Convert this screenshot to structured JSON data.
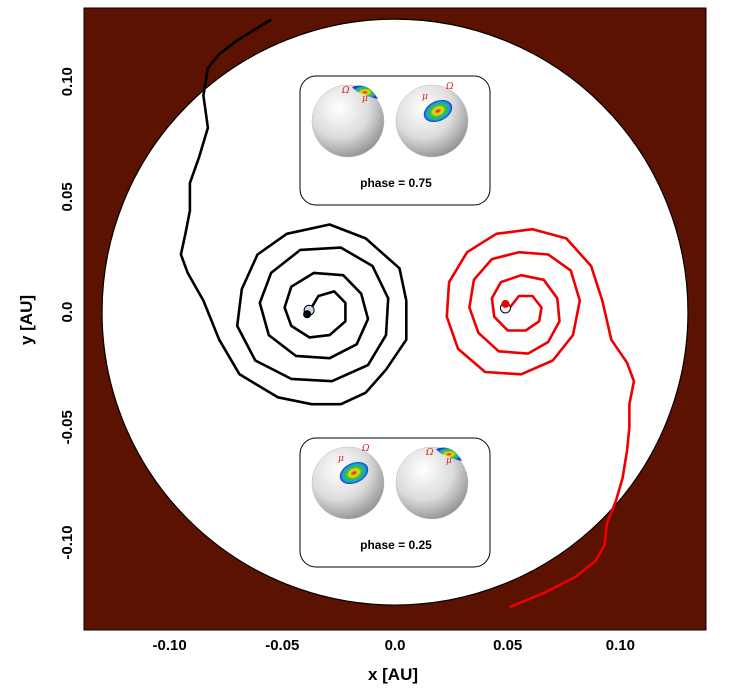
{
  "chart_data": {
    "type": "line",
    "xlabel": "x [AU]",
    "ylabel": "y [AU]",
    "xlim": [
      -0.138,
      0.138
    ],
    "ylim": [
      -0.138,
      0.132
    ],
    "x_ticks": [
      "-0.10",
      "-0.05",
      "0.0",
      "0.05",
      "0.10"
    ],
    "x_tick_values": [
      -0.1,
      -0.05,
      0.0,
      0.05,
      0.1
    ],
    "y_ticks": [
      "0.10",
      "0.05",
      "0.0",
      "-0.05",
      "-0.10"
    ],
    "y_tick_values": [
      0.1,
      0.05,
      0.0,
      -0.05,
      -0.1
    ],
    "background_color": "#5c1200",
    "disk_color": "#ffffff",
    "disk_radius_au": 0.13,
    "series": [
      {
        "color": "#000000",
        "star_position": [
          -0.039,
          -0.0005
        ],
        "points": [
          [
            -0.037,
            0.002
          ],
          [
            -0.034,
            0.007
          ],
          [
            -0.027,
            0.009
          ],
          [
            -0.022,
            0.004
          ],
          [
            -0.022,
            -0.004
          ],
          [
            -0.029,
            -0.01
          ],
          [
            -0.038,
            -0.011
          ],
          [
            -0.046,
            -0.006
          ],
          [
            -0.049,
            0.002
          ],
          [
            -0.046,
            0.011
          ],
          [
            -0.036,
            0.017
          ],
          [
            -0.023,
            0.016
          ],
          [
            -0.015,
            0.008
          ],
          [
            -0.012,
            -0.003
          ],
          [
            -0.017,
            -0.014
          ],
          [
            -0.029,
            -0.02
          ],
          [
            -0.044,
            -0.019
          ],
          [
            -0.056,
            -0.01
          ],
          [
            -0.06,
            0.004
          ],
          [
            -0.055,
            0.017
          ],
          [
            -0.042,
            0.027
          ],
          [
            -0.024,
            0.028
          ],
          [
            -0.01,
            0.02
          ],
          [
            -0.003,
            0.006
          ],
          [
            -0.004,
            -0.01
          ],
          [
            -0.012,
            -0.023
          ],
          [
            -0.028,
            -0.03
          ],
          [
            -0.046,
            -0.029
          ],
          [
            -0.062,
            -0.021
          ],
          [
            -0.07,
            -0.006
          ],
          [
            -0.068,
            0.01
          ],
          [
            -0.061,
            0.025
          ],
          [
            -0.048,
            0.034
          ],
          [
            -0.029,
            0.038
          ],
          [
            -0.013,
            0.032
          ],
          [
            0.002,
            0.019
          ],
          [
            0.005,
            0.005
          ],
          [
            0.005,
            -0.012
          ],
          [
            -0.004,
            -0.025
          ],
          [
            -0.013,
            -0.035
          ],
          [
            -0.024,
            -0.04
          ],
          [
            -0.037,
            -0.04
          ],
          [
            -0.052,
            -0.037
          ],
          [
            -0.069,
            -0.027
          ],
          [
            -0.078,
            -0.012
          ],
          [
            -0.085,
            0.005
          ],
          [
            -0.092,
            0.017
          ],
          [
            -0.095,
            0.025
          ],
          [
            -0.093,
            0.034
          ],
          [
            -0.091,
            0.044
          ],
          [
            -0.091,
            0.056
          ],
          [
            -0.087,
            0.067
          ],
          [
            -0.083,
            0.08
          ],
          [
            -0.085,
            0.094
          ],
          [
            -0.083,
            0.106
          ],
          [
            -0.078,
            0.112
          ],
          [
            -0.07,
            0.118
          ],
          [
            -0.055,
            0.127
          ]
        ]
      },
      {
        "color": "#ee0000",
        "star_position": [
          0.049,
          0.0005
        ],
        "points": [
          [
            0.051,
            0.002
          ],
          [
            0.055,
            0.007
          ],
          [
            0.061,
            0.007
          ],
          [
            0.065,
            0.002
          ],
          [
            0.064,
            -0.004
          ],
          [
            0.058,
            -0.008
          ],
          [
            0.05,
            -0.008
          ],
          [
            0.044,
            -0.002
          ],
          [
            0.043,
            0.006
          ],
          [
            0.047,
            0.013
          ],
          [
            0.056,
            0.016
          ],
          [
            0.066,
            0.014
          ],
          [
            0.072,
            0.006
          ],
          [
            0.073,
            -0.004
          ],
          [
            0.068,
            -0.013
          ],
          [
            0.059,
            -0.018
          ],
          [
            0.046,
            -0.017
          ],
          [
            0.037,
            -0.009
          ],
          [
            0.033,
            0.002
          ],
          [
            0.035,
            0.014
          ],
          [
            0.043,
            0.023
          ],
          [
            0.055,
            0.026
          ],
          [
            0.068,
            0.025
          ],
          [
            0.078,
            0.018
          ],
          [
            0.082,
            0.005
          ],
          [
            0.079,
            -0.01
          ],
          [
            0.07,
            -0.021
          ],
          [
            0.056,
            -0.027
          ],
          [
            0.04,
            -0.026
          ],
          [
            0.028,
            -0.016
          ],
          [
            0.023,
            -0.002
          ],
          [
            0.024,
            0.013
          ],
          [
            0.032,
            0.026
          ],
          [
            0.045,
            0.034
          ],
          [
            0.061,
            0.036
          ],
          [
            0.076,
            0.032
          ],
          [
            0.087,
            0.02
          ],
          [
            0.092,
            0.005
          ],
          [
            0.096,
            -0.012
          ],
          [
            0.103,
            -0.022
          ],
          [
            0.106,
            -0.03
          ],
          [
            0.104,
            -0.04
          ],
          [
            0.104,
            -0.05
          ],
          [
            0.103,
            -0.06
          ],
          [
            0.101,
            -0.072
          ],
          [
            0.098,
            -0.082
          ],
          [
            0.094,
            -0.092
          ],
          [
            0.093,
            -0.101
          ],
          [
            0.089,
            -0.108
          ],
          [
            0.08,
            -0.115
          ],
          [
            0.066,
            -0.122
          ],
          [
            0.051,
            -0.128
          ]
        ]
      }
    ],
    "insets": [
      {
        "label": "phase = 0.75",
        "position": "top-center",
        "left_blob": "polar",
        "right_blob": "mid"
      },
      {
        "label": "phase = 0.25",
        "position": "bottom-center",
        "left_blob": "mid",
        "right_blob": "polar"
      }
    ],
    "inset_symbols": [
      "Ω",
      "μ"
    ]
  }
}
